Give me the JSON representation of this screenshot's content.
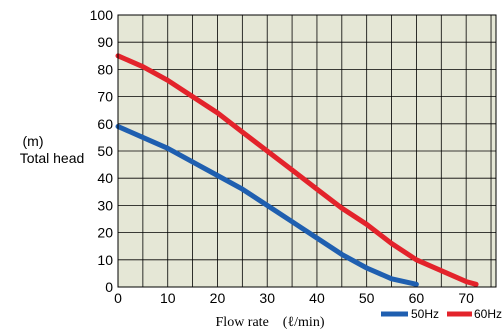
{
  "chart_data": {
    "type": "line",
    "title": "",
    "ylabel_unit": "(m)",
    "ylabel": "Total head",
    "xlabel": "Flow rate　(ℓ/min)",
    "xlim": [
      0,
      76
    ],
    "ylim": [
      0,
      100
    ],
    "x_ticks": [
      0,
      10,
      20,
      30,
      40,
      50,
      60,
      70
    ],
    "y_ticks": [
      0,
      10,
      20,
      30,
      40,
      50,
      60,
      70,
      80,
      90,
      100
    ],
    "grid": true,
    "legend_position": "bottom-right",
    "plot_background": "#e5e7d6",
    "series": [
      {
        "name": "50Hz",
        "color": "#1f5fb0",
        "x": [
          0,
          5,
          10,
          15,
          20,
          25,
          30,
          35,
          40,
          45,
          50,
          55,
          60
        ],
        "y": [
          59,
          55,
          51,
          46,
          41,
          36,
          30,
          24,
          18,
          12,
          7,
          3,
          1
        ]
      },
      {
        "name": "60Hz",
        "color": "#e3232b",
        "x": [
          0,
          5,
          10,
          15,
          20,
          25,
          30,
          35,
          40,
          45,
          50,
          55,
          60,
          65,
          70,
          72
        ],
        "y": [
          85,
          81,
          76,
          70,
          64,
          57,
          50,
          43,
          36,
          29,
          23,
          16,
          10,
          6,
          2,
          1
        ]
      }
    ]
  }
}
